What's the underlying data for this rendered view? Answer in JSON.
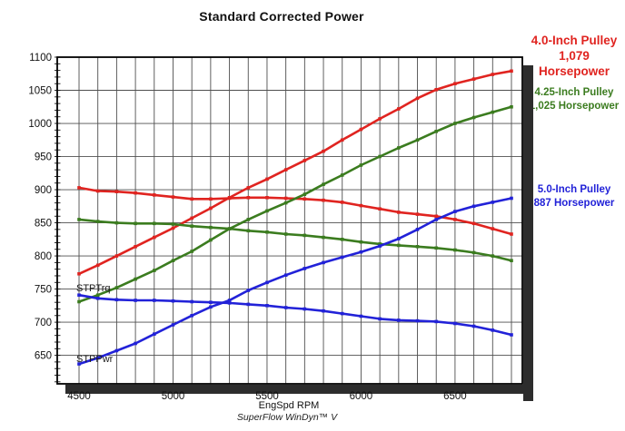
{
  "page": {
    "title": "Standard Corrected Power",
    "footer": "SuperFlow WinDyn™ V"
  },
  "annotations": {
    "red": {
      "lines": [
        "4.0-Inch Pulley",
        "1,079",
        "Horsepower"
      ],
      "color": "#e02420"
    },
    "green": {
      "lines": [
        "4.25-Inch Pulley",
        "1,025 Horsepower"
      ],
      "color": "#3b7c1f"
    },
    "blue": {
      "lines": [
        "5.0-Inch Pulley",
        "887 Horsepower"
      ],
      "color": "#2222d8"
    }
  },
  "overlay_labels": {
    "torque": "STPTrq",
    "power": "STPPwr"
  },
  "colors": {
    "grid": "#4f4f4f",
    "frame": "#000000",
    "shadow": "#2d2d2d"
  },
  "chart_data": {
    "type": "line",
    "title": "Standard Corrected Power",
    "xlabel": "EngSpd RPM",
    "ylabel": "",
    "grid": true,
    "xlim": [
      4384,
      6858
    ],
    "ylim": [
      607,
      1100
    ],
    "x_major_ticks": [
      4500,
      5000,
      5500,
      6000,
      6500
    ],
    "y_major_ticks": [
      650,
      700,
      750,
      800,
      850,
      900,
      950,
      1000,
      1050,
      1100
    ],
    "x_grid_step": 100,
    "y_grid_step": 50,
    "x": [
      4500,
      4600,
      4700,
      4800,
      4900,
      5000,
      5100,
      5200,
      5300,
      5400,
      5500,
      5600,
      5700,
      5800,
      5900,
      6000,
      6100,
      6200,
      6300,
      6400,
      6500,
      6600,
      6700,
      6800
    ],
    "series": [
      {
        "name": "4.0-inch-pulley-power-STPPwr",
        "color": "#e02420",
        "values": [
          773,
          786,
          800,
          814,
          828,
          842,
          857,
          872,
          888,
          903,
          916,
          930,
          944,
          958,
          975,
          991,
          1007,
          1022,
          1038,
          1051,
          1060,
          1067,
          1074,
          1079
        ]
      },
      {
        "name": "4.0-inch-pulley-torque-STPTrq",
        "color": "#e02420",
        "values": [
          903,
          898,
          897,
          895,
          892,
          889,
          886,
          886,
          887,
          888,
          888,
          887,
          886,
          884,
          881,
          876,
          871,
          866,
          863,
          860,
          855,
          849,
          841,
          833
        ]
      },
      {
        "name": "4.25-inch-pulley-power-STPPwr",
        "color": "#3b7c1f",
        "values": [
          731,
          741,
          752,
          765,
          778,
          793,
          807,
          824,
          841,
          855,
          868,
          880,
          893,
          908,
          922,
          937,
          950,
          963,
          975,
          988,
          1000,
          1009,
          1017,
          1025
        ]
      },
      {
        "name": "4.25-inch-pulley-torque-STPTrq",
        "color": "#3b7c1f",
        "values": [
          855,
          852,
          850,
          849,
          849,
          848,
          845,
          843,
          841,
          838,
          836,
          833,
          831,
          828,
          825,
          821,
          818,
          816,
          814,
          812,
          809,
          805,
          800,
          793
        ]
      },
      {
        "name": "5.0-inch-pulley-power-STPPwr",
        "color": "#2222d8",
        "values": [
          637,
          646,
          657,
          668,
          682,
          696,
          710,
          723,
          733,
          748,
          760,
          771,
          781,
          790,
          798,
          806,
          815,
          826,
          840,
          855,
          867,
          875,
          881,
          887
        ]
      },
      {
        "name": "5.0-inch-pulley-torque-STPTrq",
        "color": "#2222d8",
        "values": [
          741,
          736,
          734,
          733,
          733,
          732,
          731,
          730,
          729,
          727,
          725,
          722,
          720,
          717,
          713,
          709,
          705,
          703,
          702,
          701,
          698,
          694,
          688,
          681
        ]
      }
    ]
  }
}
